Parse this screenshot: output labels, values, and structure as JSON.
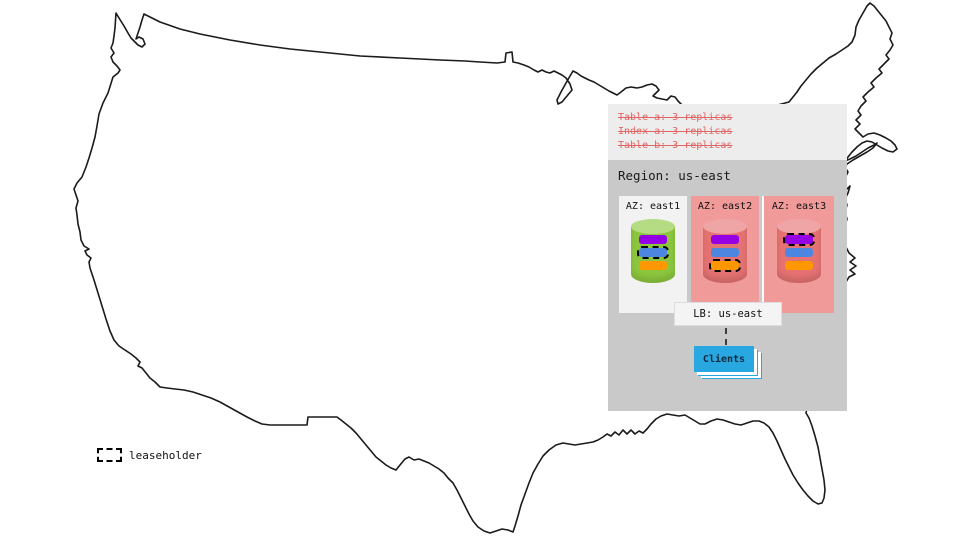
{
  "region_panel": {
    "annotations": [
      "Table a: 3 replicas",
      "Index a: 3 replicas",
      "Table b: 3 replicas"
    ],
    "title": "Region: us-east",
    "azs": [
      {
        "label": "AZ: east1",
        "status": "healthy",
        "replicas": [
          {
            "color": "purple",
            "leaseholder": false
          },
          {
            "color": "blue",
            "leaseholder": true
          },
          {
            "color": "orange",
            "leaseholder": false
          }
        ]
      },
      {
        "label": "AZ: east2",
        "status": "unavailable",
        "replicas": [
          {
            "color": "purple",
            "leaseholder": false
          },
          {
            "color": "blue",
            "leaseholder": false
          },
          {
            "color": "orange",
            "leaseholder": true
          }
        ]
      },
      {
        "label": "AZ: east3",
        "status": "unavailable",
        "replicas": [
          {
            "color": "purple",
            "leaseholder": true
          },
          {
            "color": "blue",
            "leaseholder": false
          },
          {
            "color": "orange",
            "leaseholder": false
          }
        ]
      }
    ],
    "load_balancer": {
      "label": "LB: us-east"
    },
    "clients": {
      "label": "Clients"
    }
  },
  "legend": {
    "label": "leaseholder"
  },
  "colors": {
    "map_line": "#1b1b1b",
    "panel_bg": "#c9c9c9",
    "header_bg": "#ededed",
    "annotation_red": "#e06666",
    "az_healthy_bg": "#f2f2f2",
    "az_down_bg": "#f09a9a",
    "cyl_green": "#8cc63e",
    "cyl_green_top": "#b5db83",
    "cyl_red": "#e57272",
    "cyl_red_top": "#efa5a5",
    "replica_purple": "#9400e3",
    "replica_blue": "#4d86e0",
    "replica_orange": "#ff9800",
    "lb_bg": "#f4f4f4",
    "clients_blue": "#29a7e0"
  }
}
